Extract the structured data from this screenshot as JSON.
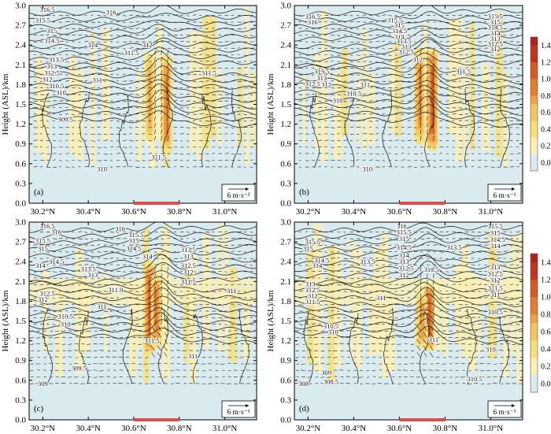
{
  "chart_data": [
    {
      "type": "heatmap",
      "panel_label": "(a)",
      "ylabel": "Height (ASL)/km",
      "xlabel": "",
      "xlim": [
        30.14,
        31.14
      ],
      "ylim": [
        0.0,
        3.0
      ],
      "x_ticks": [
        "30.2°N",
        "30.4°N",
        "30.6°N",
        "30.8°N",
        "31.0°N"
      ],
      "x_tick_values": [
        30.2,
        30.4,
        30.6,
        30.8,
        31.0
      ],
      "y_ticks": [
        "0.0",
        "0.3",
        "0.6",
        "0.9",
        "1.2",
        "1.5",
        "1.8",
        "2.1",
        "2.4",
        "2.7",
        "3.0"
      ],
      "y_tick_values": [
        0.0,
        0.3,
        0.6,
        0.9,
        1.2,
        1.5,
        1.8,
        2.1,
        2.4,
        2.7,
        3.0
      ],
      "reference_vector": "6 m·s⁻¹",
      "marked_range": [
        30.6,
        30.8
      ],
      "contours": [
        {
          "level": "316.5",
          "x": 30.22,
          "y": 2.94
        },
        {
          "level": "316",
          "x": 30.5,
          "y": 2.9
        },
        {
          "level": "315.5",
          "x": 30.2,
          "y": 2.78
        },
        {
          "level": "315",
          "x": 30.24,
          "y": 2.62
        },
        {
          "level": "314.5",
          "x": 30.24,
          "y": 2.47
        },
        {
          "level": "314",
          "x": 30.42,
          "y": 2.4
        },
        {
          "level": "313.5",
          "x": 30.26,
          "y": 2.18
        },
        {
          "level": "313",
          "x": 30.24,
          "y": 2.08
        },
        {
          "level": "312.5",
          "x": 30.24,
          "y": 1.98
        },
        {
          "level": "312",
          "x": 30.22,
          "y": 1.88
        },
        {
          "level": "311",
          "x": 30.44,
          "y": 1.87
        },
        {
          "level": "310.5",
          "x": 30.26,
          "y": 1.78
        },
        {
          "level": "310",
          "x": 30.28,
          "y": 1.68
        },
        {
          "level": "309.5",
          "x": 30.3,
          "y": 1.27
        },
        {
          "level": "311.5",
          "x": 30.59,
          "y": 2.28
        },
        {
          "level": "312",
          "x": 30.66,
          "y": 2.4
        },
        {
          "level": "311.5",
          "x": 30.93,
          "y": 1.98
        },
        {
          "level": "311.5",
          "x": 30.71,
          "y": 0.7
        },
        {
          "level": "310",
          "x": 30.46,
          "y": 0.52
        }
      ],
      "updraft_columns": [
        {
          "x": 30.67,
          "from": 0.9,
          "to": 2.3,
          "max": 0.7
        },
        {
          "x": 30.745,
          "from": 0.75,
          "to": 2.25,
          "max": 0.9
        }
      ],
      "colorbar": {
        "ticks": []
      }
    },
    {
      "type": "heatmap",
      "panel_label": "(b)",
      "ylabel": "Height (ASL)/km",
      "xlabel": "",
      "xlim": [
        30.14,
        31.14
      ],
      "ylim": [
        0.0,
        3.0
      ],
      "x_ticks": [
        "30.2°N",
        "30.4°N",
        "30.6°N",
        "30.8°N",
        "31.0°N"
      ],
      "x_tick_values": [
        30.2,
        30.4,
        30.6,
        30.8,
        31.0
      ],
      "y_ticks": [
        "0.0",
        "0.3",
        "0.6",
        "0.9",
        "1.2",
        "1.5",
        "1.8",
        "2.1",
        "2.4",
        "2.7",
        "3.0"
      ],
      "y_tick_values": [
        0.0,
        0.3,
        0.6,
        0.9,
        1.2,
        1.5,
        1.8,
        2.1,
        2.4,
        2.7,
        3.0
      ],
      "reference_vector": "6 m·s⁻¹",
      "marked_range": [
        30.6,
        30.8
      ],
      "contours": [
        {
          "level": "316.5",
          "x": 30.22,
          "y": 2.83
        },
        {
          "level": "316",
          "x": 30.22,
          "y": 2.75
        },
        {
          "level": "315.5",
          "x": 30.58,
          "y": 2.78
        },
        {
          "level": "315",
          "x": 30.6,
          "y": 2.7
        },
        {
          "level": "314.5",
          "x": 30.6,
          "y": 2.62
        },
        {
          "level": "314",
          "x": 30.6,
          "y": 2.52
        },
        {
          "level": "313.5",
          "x": 30.62,
          "y": 2.46
        },
        {
          "level": "313",
          "x": 30.63,
          "y": 2.38
        },
        {
          "level": "312.5",
          "x": 30.63,
          "y": 2.3
        },
        {
          "level": "313.5",
          "x": 30.26,
          "y": 2.0
        },
        {
          "level": "313",
          "x": 30.26,
          "y": 1.9
        },
        {
          "level": "312.5",
          "x": 30.22,
          "y": 1.81
        },
        {
          "level": "312",
          "x": 30.28,
          "y": 1.8
        },
        {
          "level": "311",
          "x": 30.45,
          "y": 1.8
        },
        {
          "level": "310.5",
          "x": 30.4,
          "y": 1.67
        },
        {
          "level": "310",
          "x": 30.33,
          "y": 1.56
        },
        {
          "level": "312",
          "x": 30.68,
          "y": 2.18
        },
        {
          "level": "311.5",
          "x": 30.88,
          "y": 2.0
        },
        {
          "level": "315.5",
          "x": 31.02,
          "y": 2.84
        },
        {
          "level": "315",
          "x": 31.02,
          "y": 2.75
        },
        {
          "level": "314.5",
          "x": 31.02,
          "y": 2.67
        },
        {
          "level": "314",
          "x": 31.02,
          "y": 2.58
        },
        {
          "level": "313",
          "x": 31.02,
          "y": 2.5
        },
        {
          "level": "312.5",
          "x": 31.02,
          "y": 2.42
        },
        {
          "level": "312",
          "x": 31.02,
          "y": 2.34
        },
        {
          "level": "310",
          "x": 30.46,
          "y": 0.52
        }
      ],
      "updraft_columns": [
        {
          "x": 30.69,
          "from": 0.9,
          "to": 2.35,
          "max": 0.85
        },
        {
          "x": 30.745,
          "from": 0.8,
          "to": 2.35,
          "max": 1.05
        }
      ],
      "colorbar": {
        "ticks": [
          "1.4",
          "1.2",
          "1.0",
          "0.8",
          "0.6",
          "0.4",
          "0.2",
          "0.0"
        ],
        "tick_values": [
          1.4,
          1.2,
          1.0,
          0.8,
          0.6,
          0.4,
          0.2,
          0.0
        ]
      }
    },
    {
      "type": "heatmap",
      "panel_label": "(c)",
      "ylabel": "Height (ASL)/km",
      "xlabel": "",
      "xlim": [
        30.14,
        31.14
      ],
      "ylim": [
        0.0,
        3.0
      ],
      "x_ticks": [
        "30.2°N",
        "30.4°N",
        "30.6°N",
        "30.8°N",
        "31.0°N"
      ],
      "x_tick_values": [
        30.2,
        30.4,
        30.6,
        30.8,
        31.0
      ],
      "y_ticks": [
        "0.0",
        "0.3",
        "0.6",
        "0.9",
        "1.2",
        "1.5",
        "1.8",
        "2.1",
        "2.4",
        "2.7",
        "3.0"
      ],
      "y_tick_values": [
        0.0,
        0.3,
        0.6,
        0.9,
        1.2,
        1.5,
        1.8,
        2.1,
        2.4,
        2.7,
        3.0
      ],
      "reference_vector": "6 m·s⁻¹",
      "marked_range": [
        30.6,
        30.8
      ],
      "contours": [
        {
          "level": "316.5",
          "x": 30.22,
          "y": 2.94
        },
        {
          "level": "316",
          "x": 30.26,
          "y": 2.85
        },
        {
          "level": "315.5",
          "x": 30.2,
          "y": 2.72
        },
        {
          "level": "315",
          "x": 30.2,
          "y": 2.6
        },
        {
          "level": "314.5",
          "x": 30.26,
          "y": 2.4
        },
        {
          "level": "314",
          "x": 30.19,
          "y": 2.34
        },
        {
          "level": "313.5",
          "x": 30.4,
          "y": 2.29
        },
        {
          "level": "313",
          "x": 30.42,
          "y": 2.2
        },
        {
          "level": "312.5",
          "x": 30.22,
          "y": 1.92
        },
        {
          "level": "312",
          "x": 30.2,
          "y": 1.83
        },
        {
          "level": "311",
          "x": 30.46,
          "y": 1.72
        },
        {
          "level": "310.5",
          "x": 30.3,
          "y": 1.57
        },
        {
          "level": "310",
          "x": 30.3,
          "y": 1.45
        },
        {
          "level": "309.5",
          "x": 30.36,
          "y": 0.78
        },
        {
          "level": "309",
          "x": 30.2,
          "y": 0.55
        },
        {
          "level": "316",
          "x": 30.54,
          "y": 2.9
        },
        {
          "level": "315.5",
          "x": 30.61,
          "y": 2.81
        },
        {
          "level": "315",
          "x": 30.6,
          "y": 2.72
        },
        {
          "level": "314.5",
          "x": 30.6,
          "y": 2.6
        },
        {
          "level": "314",
          "x": 30.66,
          "y": 2.48
        },
        {
          "level": "313.5",
          "x": 30.84,
          "y": 2.58
        },
        {
          "level": "313",
          "x": 30.84,
          "y": 2.48
        },
        {
          "level": "312.5",
          "x": 30.84,
          "y": 2.34
        },
        {
          "level": "312",
          "x": 30.84,
          "y": 2.24
        },
        {
          "level": "311.5",
          "x": 30.84,
          "y": 2.1
        },
        {
          "level": "311.9",
          "x": 30.52,
          "y": 1.97
        },
        {
          "level": "311",
          "x": 31.03,
          "y": 1.96
        },
        {
          "level": "311.5",
          "x": 30.68,
          "y": 1.2
        },
        {
          "level": "311",
          "x": 30.86,
          "y": 0.97
        }
      ],
      "updraft_columns": [
        {
          "x": 30.67,
          "from": 1.0,
          "to": 2.4,
          "max": 1.05
        },
        {
          "x": 30.7,
          "from": 1.1,
          "to": 2.2,
          "max": 0.9
        }
      ],
      "colorbar": {
        "ticks": []
      }
    },
    {
      "type": "heatmap",
      "panel_label": "(d)",
      "ylabel": "Height (ASL)/km",
      "xlabel": "",
      "xlim": [
        30.14,
        31.14
      ],
      "ylim": [
        0.0,
        3.0
      ],
      "x_ticks": [
        "30.2°N",
        "30.4°N",
        "30.6°N",
        "30.8°N",
        "31.0°N"
      ],
      "x_tick_values": [
        30.2,
        30.4,
        30.6,
        30.8,
        31.0
      ],
      "y_ticks": [
        "0.0",
        "0.3",
        "0.6",
        "0.9",
        "1.2",
        "1.5",
        "1.8",
        "2.1",
        "2.4",
        "2.7",
        "3.0"
      ],
      "y_tick_values": [
        0.0,
        0.3,
        0.6,
        0.9,
        1.2,
        1.5,
        1.8,
        2.1,
        2.4,
        2.7,
        3.0
      ],
      "reference_vector": "6 m·s⁻¹",
      "marked_range": [
        30.6,
        30.8
      ],
      "contours": [
        {
          "level": "316",
          "x": 30.61,
          "y": 2.94
        },
        {
          "level": "315.5",
          "x": 30.62,
          "y": 2.85
        },
        {
          "level": "315",
          "x": 30.62,
          "y": 2.75
        },
        {
          "level": "314.5",
          "x": 30.62,
          "y": 2.62
        },
        {
          "level": "314",
          "x": 30.62,
          "y": 2.5
        },
        {
          "level": "313",
          "x": 30.62,
          "y": 2.4
        },
        {
          "level": "312.5",
          "x": 30.63,
          "y": 2.3
        },
        {
          "level": "312",
          "x": 30.62,
          "y": 2.2
        },
        {
          "level": "311.5",
          "x": 30.74,
          "y": 2.28
        },
        {
          "level": "315.5",
          "x": 30.22,
          "y": 2.7
        },
        {
          "level": "315",
          "x": 30.2,
          "y": 2.6
        },
        {
          "level": "314.5",
          "x": 30.26,
          "y": 2.42
        },
        {
          "level": "314",
          "x": 30.24,
          "y": 2.34
        },
        {
          "level": "313.5",
          "x": 30.46,
          "y": 2.4
        },
        {
          "level": "313.5",
          "x": 30.84,
          "y": 2.62
        },
        {
          "level": "313",
          "x": 30.21,
          "y": 2.06
        },
        {
          "level": "312.5",
          "x": 30.22,
          "y": 1.97
        },
        {
          "level": "312",
          "x": 30.22,
          "y": 1.88
        },
        {
          "level": "311.5",
          "x": 30.22,
          "y": 1.79
        },
        {
          "level": "311",
          "x": 30.52,
          "y": 1.85
        },
        {
          "level": "310.5",
          "x": 30.3,
          "y": 1.42
        },
        {
          "level": "310",
          "x": 30.31,
          "y": 1.33
        },
        {
          "level": "309",
          "x": 30.28,
          "y": 0.72
        },
        {
          "level": "308.5",
          "x": 30.3,
          "y": 0.58
        },
        {
          "level": "308",
          "x": 30.18,
          "y": 0.55
        },
        {
          "level": "311",
          "x": 30.75,
          "y": 1.22
        },
        {
          "level": "310.5",
          "x": 30.93,
          "y": 0.62
        },
        {
          "level": "315.5",
          "x": 31.02,
          "y": 2.94
        },
        {
          "level": "315",
          "x": 31.02,
          "y": 2.84
        },
        {
          "level": "314.5",
          "x": 31.03,
          "y": 2.74
        },
        {
          "level": "314",
          "x": 31.02,
          "y": 2.64
        },
        {
          "level": "313",
          "x": 31.02,
          "y": 2.32
        },
        {
          "level": "312.5",
          "x": 31.02,
          "y": 2.22
        },
        {
          "level": "312",
          "x": 31.02,
          "y": 2.12
        },
        {
          "level": "311.5",
          "x": 31.02,
          "y": 2.0
        },
        {
          "level": "311",
          "x": 31.02,
          "y": 1.9
        },
        {
          "level": "310.5",
          "x": 31.02,
          "y": 1.64
        },
        {
          "level": "310",
          "x": 31.0,
          "y": 1.07
        }
      ],
      "updraft_columns": [
        {
          "x": 30.73,
          "from": 1.05,
          "to": 2.05,
          "max": 1.15
        },
        {
          "x": 30.7,
          "from": 1.1,
          "to": 1.9,
          "max": 0.8
        }
      ],
      "colorbar": {
        "ticks": [
          "1.4",
          "1.2",
          "1.0",
          "0.8",
          "0.6",
          "0.4",
          "0.2",
          "0.0"
        ],
        "tick_values": [
          1.4,
          1.2,
          1.0,
          0.8,
          0.6,
          0.4,
          0.2,
          0.0
        ]
      }
    }
  ],
  "colors": {
    "ambient": "#d9ebef",
    "scale": [
      "#d9ebef",
      "#fbf0b2",
      "#f5e07e",
      "#f3c465",
      "#eea04a",
      "#e37d33",
      "#d45a24",
      "#c0351f",
      "#b0231c"
    ],
    "marker": "#e34a4a"
  }
}
